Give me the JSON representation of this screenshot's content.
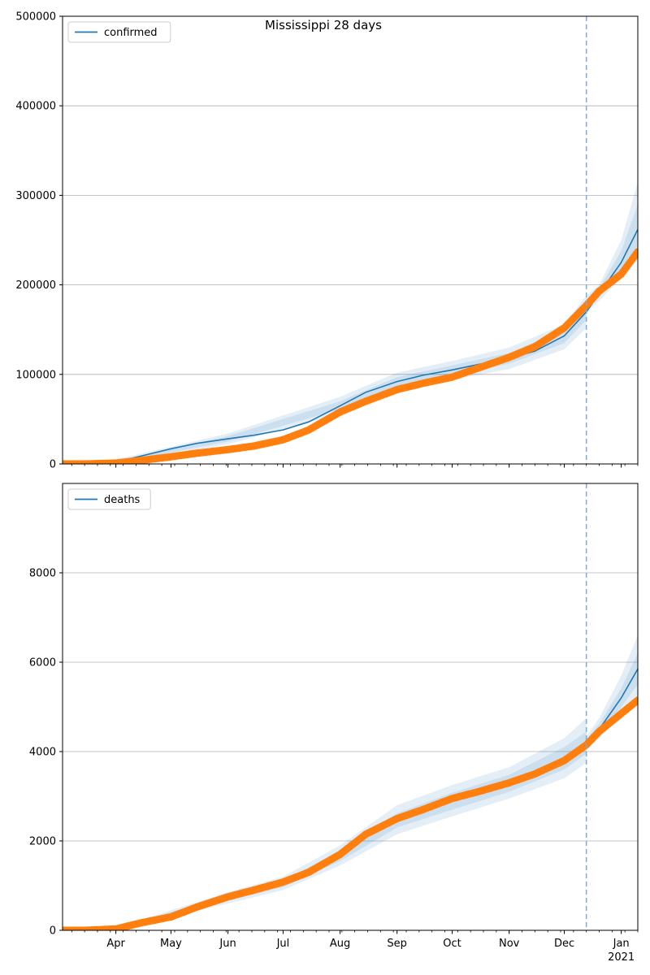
{
  "figure": {
    "title": "Mississippi 28 days"
  },
  "colors": {
    "model": "#1f77b4",
    "observed": "#ff7f0e",
    "band": "#1f77b4",
    "grid": "#b0b0b0",
    "forecast_line": "#7fa9d6"
  },
  "x_axis": {
    "month_labels": [
      "Apr",
      "May",
      "Jun",
      "Jul",
      "Aug",
      "Sep",
      "Oct",
      "Nov",
      "Dec",
      "Jan"
    ],
    "year_label": "2021"
  },
  "chart_data": [
    {
      "type": "line",
      "name": "confirmed-panel",
      "legend": "confirmed",
      "legend_position": "top-left",
      "grid": "y",
      "xlim": [
        "2020-03-03",
        "2021-01-10"
      ],
      "ylim": [
        0,
        500000
      ],
      "yticks": [
        0,
        100000,
        200000,
        300000,
        400000,
        500000
      ],
      "forecast_start": "2020-12-13",
      "model": {
        "x": [
          "2020-03-03",
          "2020-03-15",
          "2020-04-01",
          "2020-04-15",
          "2020-05-01",
          "2020-05-15",
          "2020-06-01",
          "2020-06-15",
          "2020-07-01",
          "2020-07-15",
          "2020-08-01",
          "2020-08-15",
          "2020-09-01",
          "2020-09-15",
          "2020-10-01",
          "2020-10-15",
          "2020-11-01",
          "2020-11-15",
          "2020-12-01",
          "2020-12-13",
          "2020-12-20",
          "2021-01-01",
          "2021-01-10"
        ],
        "y": [
          0,
          0,
          2000,
          9000,
          17000,
          23000,
          28000,
          32000,
          38000,
          47000,
          65000,
          80000,
          92000,
          99000,
          105000,
          111000,
          118000,
          126000,
          143000,
          170000,
          190000,
          225000,
          262000
        ]
      },
      "bands": [
        {
          "x": [
            "2020-03-03",
            "2020-04-01",
            "2020-06-01",
            "2020-08-01",
            "2020-09-01",
            "2020-10-01",
            "2020-11-01",
            "2020-12-01",
            "2020-12-13"
          ],
          "lower": [
            0,
            0,
            22000,
            56000,
            82000,
            94000,
            106000,
            128000,
            152000
          ],
          "upper": [
            0,
            5000,
            34000,
            75000,
            102000,
            115000,
            130000,
            156000,
            188000
          ]
        },
        {
          "x": [
            "2020-03-03",
            "2020-04-01",
            "2020-06-01",
            "2020-08-01",
            "2020-09-01",
            "2020-10-01",
            "2020-11-01",
            "2020-12-01",
            "2020-12-13"
          ],
          "lower": [
            0,
            1000,
            25000,
            61000,
            87000,
            99000,
            112000,
            135000,
            161000
          ],
          "upper": [
            0,
            3500,
            31000,
            70000,
            97000,
            110000,
            124000,
            150000,
            180000
          ]
        },
        {
          "x": [
            "2020-12-13",
            "2020-12-20",
            "2021-01-01",
            "2021-01-10"
          ],
          "lower": [
            168000,
            182000,
            208000,
            228000
          ],
          "upper": [
            188000,
            200000,
            250000,
            315000
          ]
        },
        {
          "x": [
            "2020-12-13",
            "2020-12-20",
            "2021-01-01",
            "2021-01-10"
          ],
          "lower": [
            172000,
            186000,
            216000,
            244000
          ],
          "upper": [
            182000,
            196000,
            238000,
            290000
          ]
        }
      ],
      "observed": {
        "x": [
          "2020-03-03",
          "2020-03-15",
          "2020-04-01",
          "2020-04-15",
          "2020-05-01",
          "2020-05-15",
          "2020-06-01",
          "2020-06-15",
          "2020-07-01",
          "2020-07-15",
          "2020-08-01",
          "2020-08-15",
          "2020-09-01",
          "2020-09-15",
          "2020-10-01",
          "2020-10-15",
          "2020-11-01",
          "2020-11-15",
          "2020-12-01",
          "2020-12-13",
          "2020-12-20",
          "2021-01-01",
          "2021-01-10"
        ],
        "y": [
          0,
          0,
          1000,
          4000,
          8000,
          12000,
          16000,
          20000,
          27000,
          38000,
          58000,
          70000,
          83000,
          90000,
          97000,
          107000,
          119000,
          131000,
          152000,
          177000,
          193000,
          212000,
          237000
        ]
      }
    },
    {
      "type": "line",
      "name": "deaths-panel",
      "legend": "deaths",
      "legend_position": "top-left",
      "grid": "y",
      "xlim": [
        "2020-03-03",
        "2021-01-10"
      ],
      "ylim": [
        0,
        10000
      ],
      "yticks": [
        0,
        2000,
        4000,
        6000,
        8000
      ],
      "forecast_start": "2020-12-13",
      "model": {
        "x": [
          "2020-03-03",
          "2020-03-15",
          "2020-04-01",
          "2020-04-15",
          "2020-05-01",
          "2020-05-15",
          "2020-06-01",
          "2020-06-15",
          "2020-07-01",
          "2020-07-15",
          "2020-08-01",
          "2020-08-15",
          "2020-09-01",
          "2020-09-15",
          "2020-10-01",
          "2020-10-15",
          "2020-11-01",
          "2020-11-15",
          "2020-12-01",
          "2020-12-13",
          "2020-12-20",
          "2021-01-01",
          "2021-01-10"
        ],
        "y": [
          0,
          0,
          30,
          150,
          300,
          500,
          720,
          880,
          1040,
          1260,
          1650,
          2100,
          2450,
          2680,
          2900,
          3080,
          3300,
          3550,
          3850,
          4200,
          4500,
          5200,
          5850
        ]
      },
      "bands": [
        {
          "x": [
            "2020-03-03",
            "2020-04-01",
            "2020-06-01",
            "2020-07-01",
            "2020-08-01",
            "2020-09-01",
            "2020-10-01",
            "2020-11-01",
            "2020-12-01",
            "2020-12-13"
          ],
          "lower": [
            0,
            0,
            600,
            900,
            1450,
            2150,
            2550,
            2950,
            3400,
            3750
          ],
          "upper": [
            0,
            60,
            850,
            1200,
            1900,
            2800,
            3250,
            3650,
            4300,
            4750
          ]
        },
        {
          "x": [
            "2020-03-03",
            "2020-04-01",
            "2020-06-01",
            "2020-07-01",
            "2020-08-01",
            "2020-09-01",
            "2020-10-01",
            "2020-11-01",
            "2020-12-01",
            "2020-12-13"
          ],
          "lower": [
            0,
            10,
            660,
            970,
            1550,
            2300,
            2700,
            3100,
            3600,
            3950
          ],
          "upper": [
            0,
            45,
            790,
            1110,
            1780,
            2620,
            3080,
            3480,
            4100,
            4450
          ]
        },
        {
          "x": [
            "2020-12-13",
            "2020-12-20",
            "2021-01-01",
            "2021-01-10"
          ],
          "lower": [
            4050,
            4300,
            4800,
            5200
          ],
          "upper": [
            4350,
            4750,
            5700,
            6600
          ]
        },
        {
          "x": [
            "2020-12-13",
            "2020-12-20",
            "2021-01-01",
            "2021-01-10"
          ],
          "lower": [
            4120,
            4400,
            5000,
            5500
          ],
          "upper": [
            4280,
            4620,
            5420,
            6200
          ]
        }
      ],
      "observed": {
        "x": [
          "2020-03-03",
          "2020-03-15",
          "2020-04-01",
          "2020-04-15",
          "2020-05-01",
          "2020-05-15",
          "2020-06-01",
          "2020-06-15",
          "2020-07-01",
          "2020-07-15",
          "2020-08-01",
          "2020-08-15",
          "2020-09-01",
          "2020-09-15",
          "2020-10-01",
          "2020-10-15",
          "2020-11-01",
          "2020-11-15",
          "2020-12-01",
          "2020-12-13",
          "2020-12-20",
          "2021-01-01",
          "2021-01-10"
        ],
        "y": [
          0,
          0,
          30,
          170,
          300,
          520,
          750,
          900,
          1080,
          1300,
          1700,
          2150,
          2500,
          2700,
          2950,
          3100,
          3300,
          3500,
          3800,
          4150,
          4450,
          4850,
          5150
        ]
      }
    }
  ]
}
